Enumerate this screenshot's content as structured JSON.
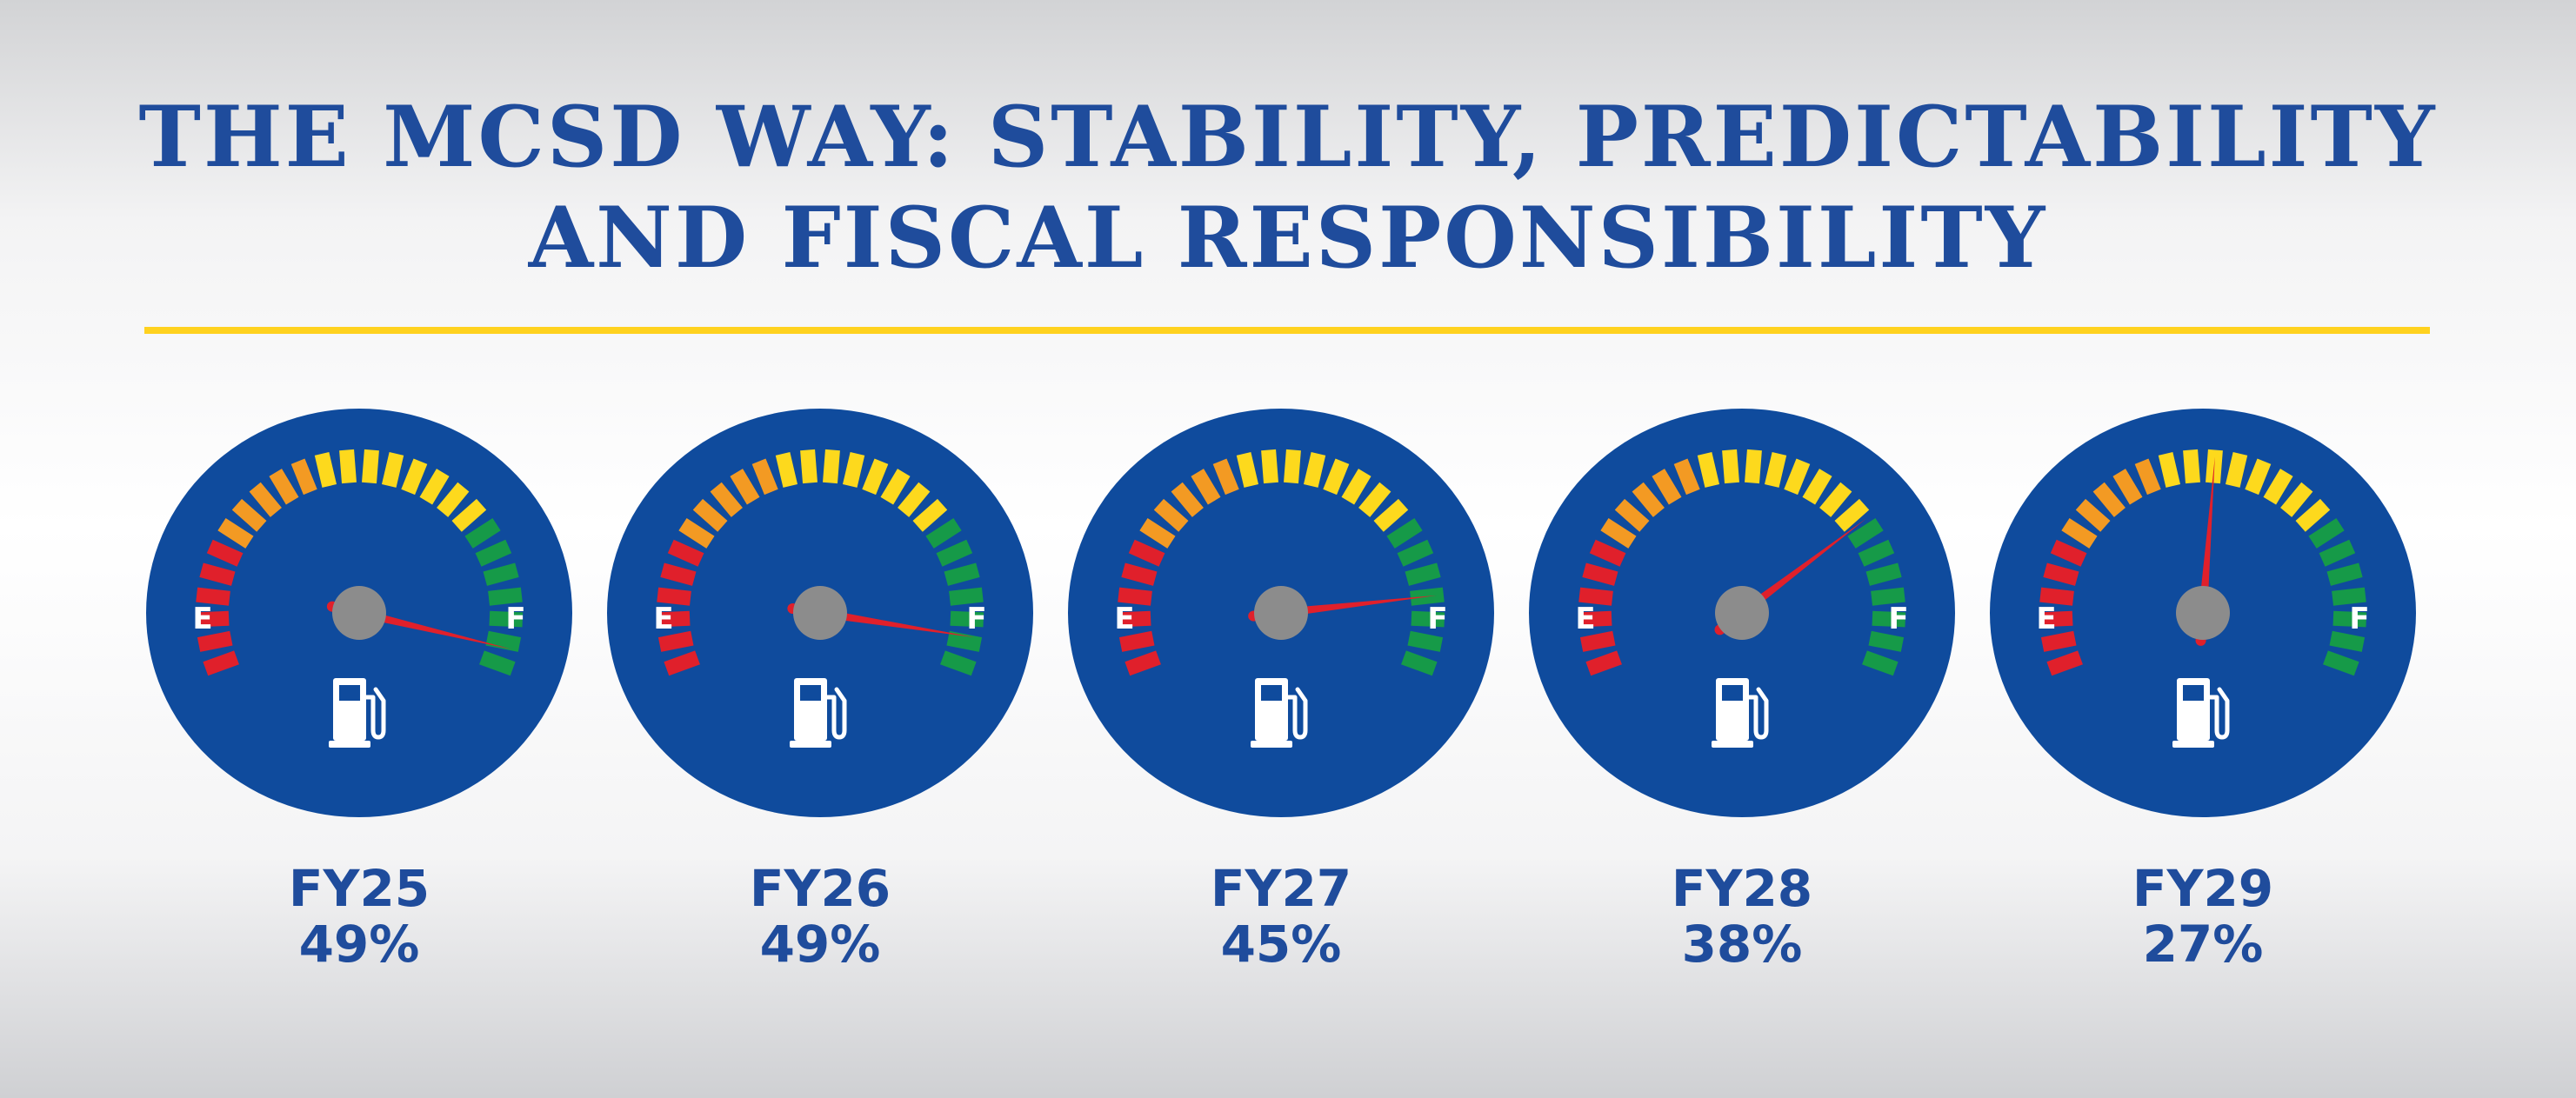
{
  "title": {
    "line1": "THE MCSD WAY: STABILITY, PREDICTABILITY",
    "line2": "AND FISCAL RESPONSIBILITY"
  },
  "colors": {
    "title": "#1f4c9c",
    "divider": "#ffd21f",
    "dial": "#0f4b9d",
    "needle": "#e0202b",
    "hub": "#8c8c8c",
    "tick_red": "#e0202b",
    "tick_orange": "#f39a23",
    "tick_yellow": "#fdd91d",
    "tick_green": "#169a48"
  },
  "scale": {
    "empty": "E",
    "full": "F"
  },
  "icon": "fuel-pump-icon",
  "gauges": [
    {
      "year": "FY25",
      "percent": "49%",
      "needle_level": 0.97
    },
    {
      "year": "FY26",
      "percent": "49%",
      "needle_level": 0.95
    },
    {
      "year": "FY27",
      "percent": "45%",
      "needle_level": 0.88
    },
    {
      "year": "FY28",
      "percent": "38%",
      "needle_level": 0.74
    },
    {
      "year": "FY29",
      "percent": "27%",
      "needle_level": 0.52
    }
  ]
}
